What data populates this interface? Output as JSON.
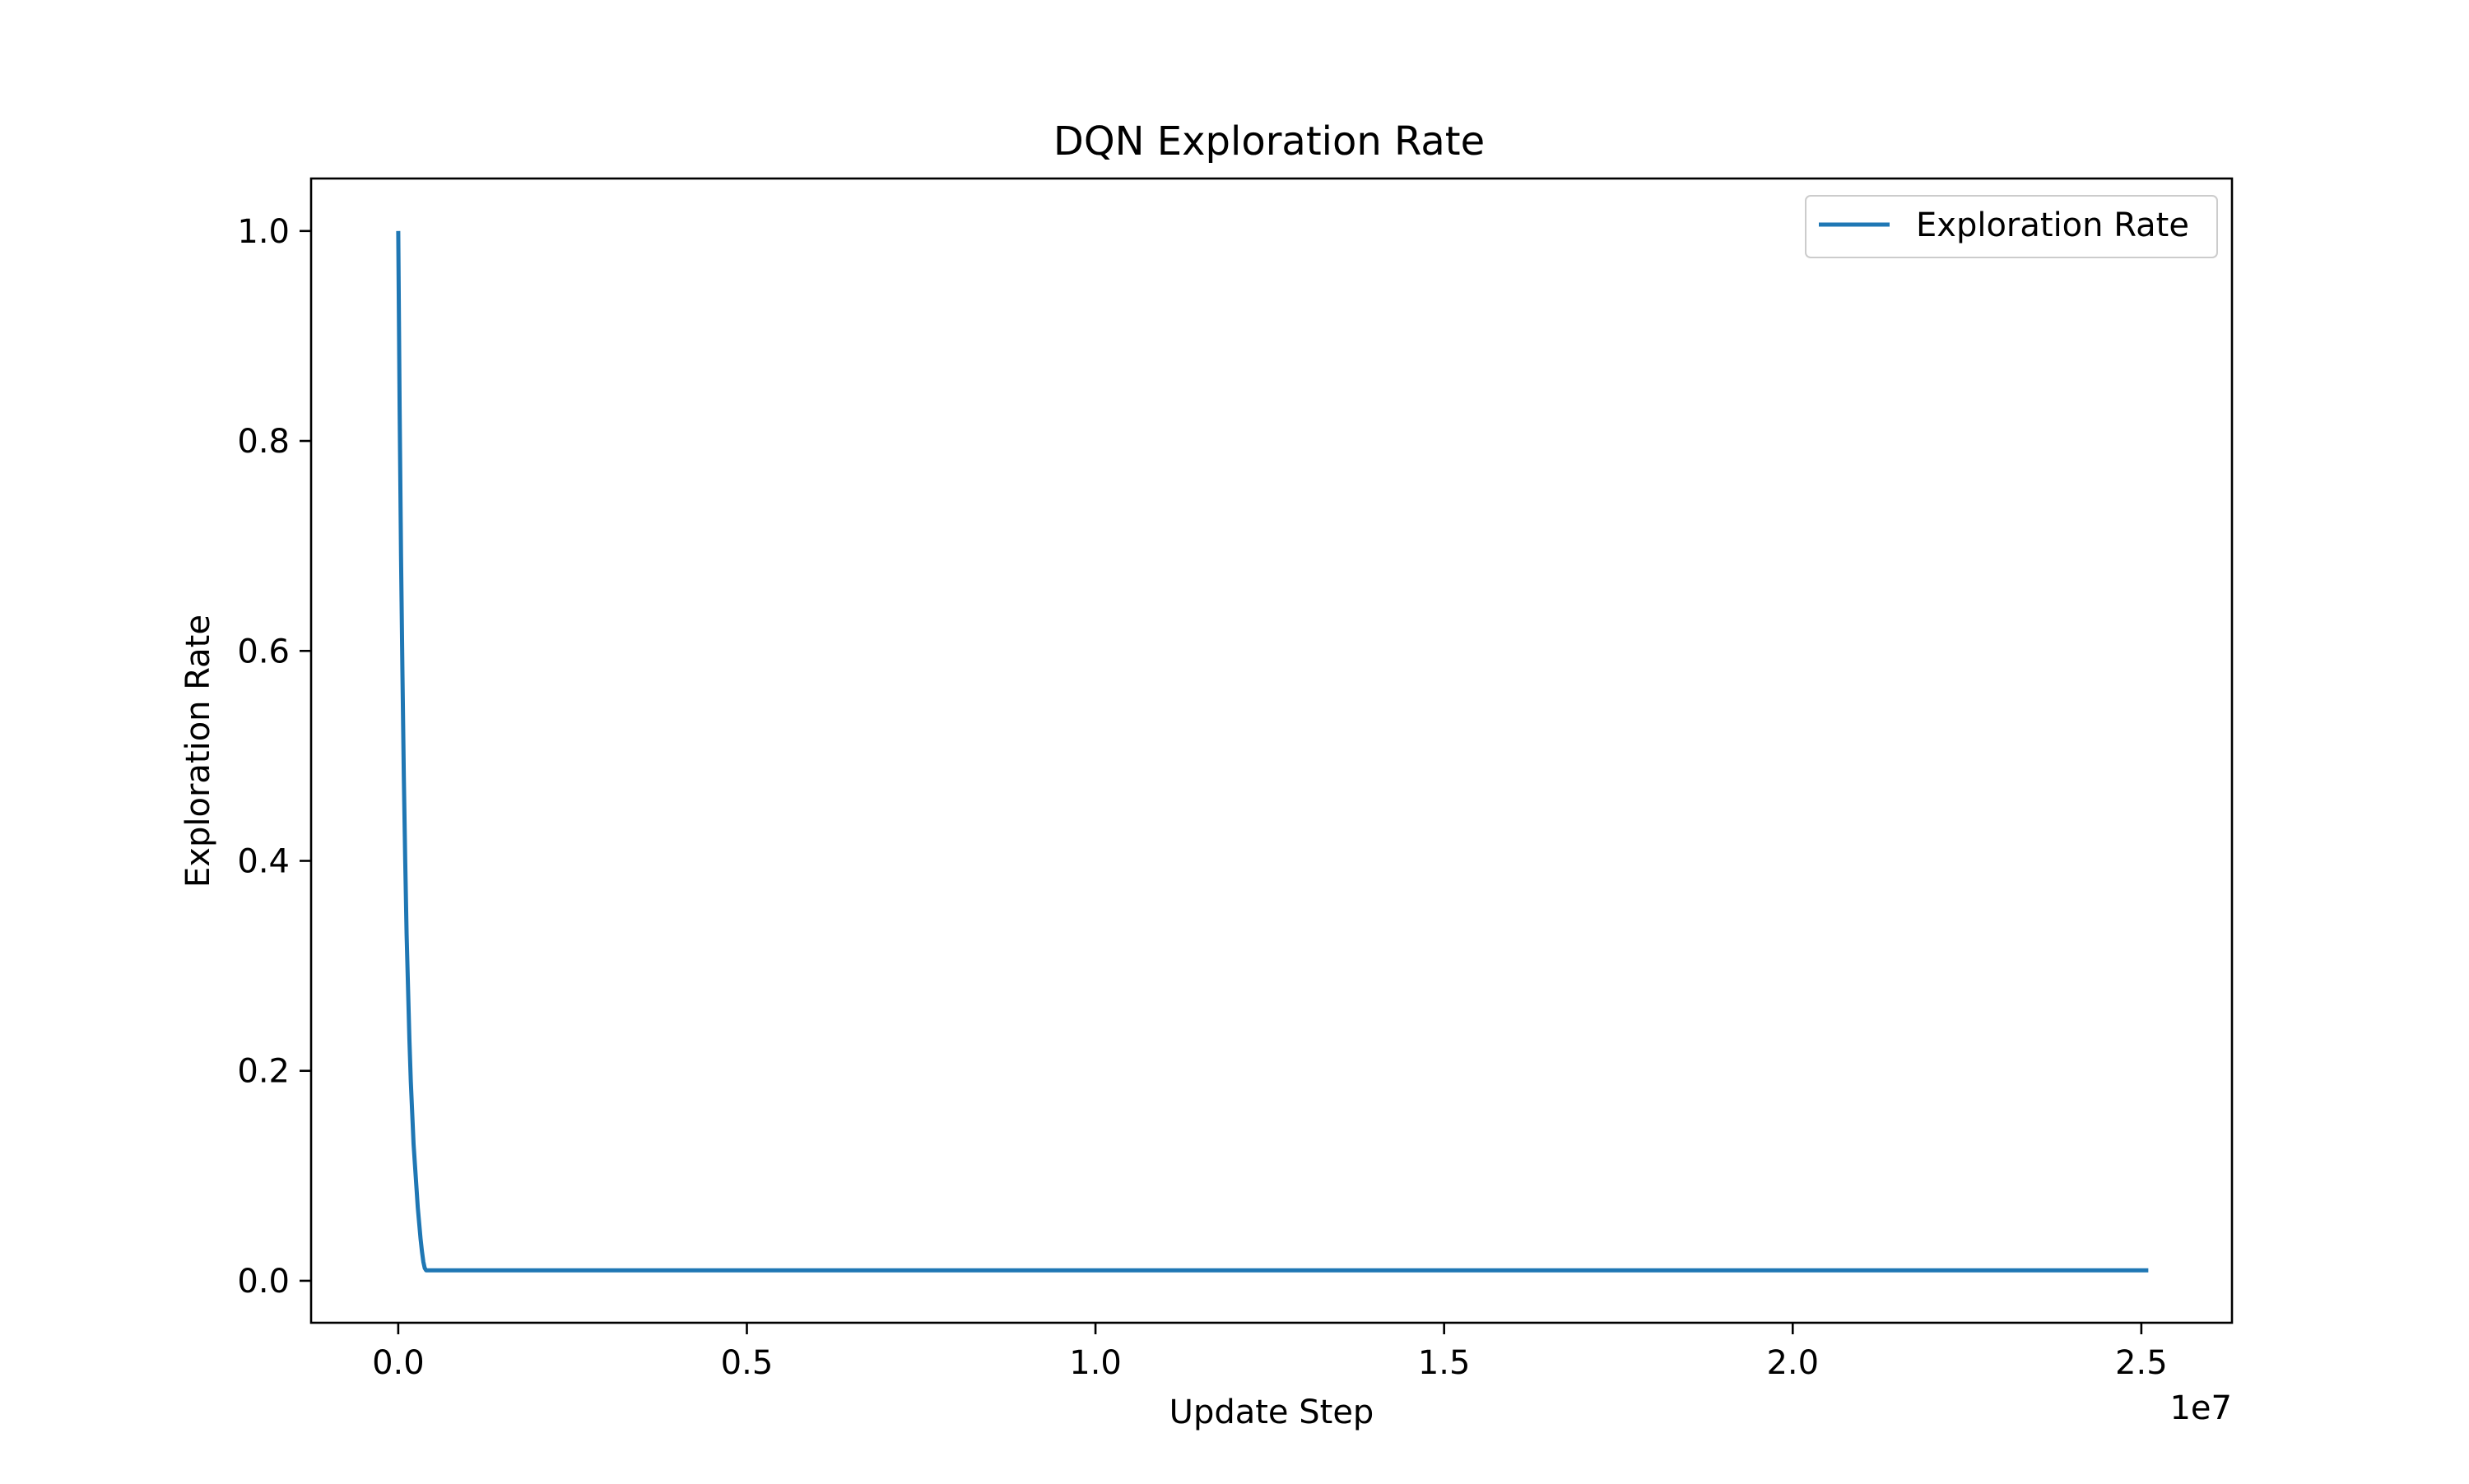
{
  "chart_data": {
    "type": "line",
    "title": "DQN Exploration Rate",
    "xlabel": "Update Step",
    "ylabel": "Exploration Rate",
    "x_offset_label": "1e7",
    "xlim": [
      -1250000,
      26300000
    ],
    "ylim": [
      -0.04,
      1.05
    ],
    "x_ticks": [
      0,
      5000000,
      10000000,
      15000000,
      20000000,
      25000000
    ],
    "x_tick_labels": [
      "0.0",
      "0.5",
      "1.0",
      "1.5",
      "2.0",
      "2.5"
    ],
    "y_ticks": [
      0.0,
      0.2,
      0.4,
      0.6,
      0.8,
      1.0
    ],
    "y_tick_labels": [
      "0.0",
      "0.2",
      "0.4",
      "0.6",
      "0.8",
      "1.0"
    ],
    "grid": false,
    "legend": "upper right",
    "series": [
      {
        "name": "Exploration Rate",
        "color": "#1f77b4",
        "x": [
          0,
          20000,
          40000,
          60000,
          80000,
          100000,
          120000,
          140000,
          160000,
          180000,
          200000,
          220000,
          240000,
          260000,
          280000,
          300000,
          320000,
          340000,
          360000,
          380000,
          400000,
          500000,
          1000000,
          5000000,
          10000000,
          15000000,
          20000000,
          25100000
        ],
        "y": [
          1.0,
          0.83,
          0.69,
          0.58,
          0.48,
          0.4,
          0.33,
          0.28,
          0.23,
          0.19,
          0.16,
          0.13,
          0.11,
          0.09,
          0.07,
          0.055,
          0.04,
          0.028,
          0.018,
          0.012,
          0.01,
          0.01,
          0.01,
          0.01,
          0.01,
          0.01,
          0.01,
          0.01
        ]
      }
    ]
  }
}
